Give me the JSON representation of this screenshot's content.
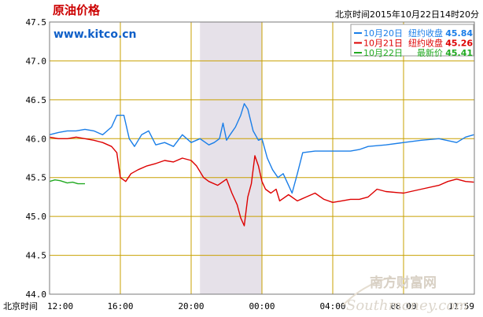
{
  "chart_data": {
    "type": "line",
    "title": "原油价格",
    "subtitle": "www.kitco.cn",
    "timestamp": "北京时间2015年10月22日14时20分",
    "x_axis_prefix": "北京时间",
    "x_ticks": [
      "12:00",
      "16:00",
      "20:00",
      "00:00",
      "04:00",
      "08:00",
      "11:59"
    ],
    "ylim": [
      44.0,
      47.5
    ],
    "y_ticks": [
      "47.5",
      "47.0",
      "46.5",
      "46.0",
      "45.5",
      "45.0",
      "44.5",
      "44.0"
    ],
    "grid": true,
    "legend_position": "top-right",
    "highlight_band": [
      20.5,
      24.0
    ],
    "series": [
      {
        "name": "10月20日",
        "legend_label": "纽约收盘",
        "legend_value": "45.84",
        "color": "#1a7ee8",
        "points": [
          [
            12.0,
            46.05
          ],
          [
            12.5,
            46.08
          ],
          [
            13.0,
            46.1
          ],
          [
            13.5,
            46.1
          ],
          [
            14.0,
            46.12
          ],
          [
            14.5,
            46.1
          ],
          [
            15.0,
            46.05
          ],
          [
            15.5,
            46.15
          ],
          [
            15.8,
            46.3
          ],
          [
            16.2,
            46.3
          ],
          [
            16.5,
            46.0
          ],
          [
            16.8,
            45.9
          ],
          [
            17.2,
            46.05
          ],
          [
            17.6,
            46.1
          ],
          [
            18.0,
            45.92
          ],
          [
            18.5,
            45.95
          ],
          [
            19.0,
            45.9
          ],
          [
            19.5,
            46.05
          ],
          [
            20.0,
            45.95
          ],
          [
            20.5,
            46.0
          ],
          [
            21.0,
            45.92
          ],
          [
            21.3,
            45.95
          ],
          [
            21.6,
            46.0
          ],
          [
            21.8,
            46.2
          ],
          [
            22.0,
            45.98
          ],
          [
            22.2,
            46.05
          ],
          [
            22.5,
            46.15
          ],
          [
            22.8,
            46.3
          ],
          [
            23.0,
            46.45
          ],
          [
            23.2,
            46.38
          ],
          [
            23.5,
            46.1
          ],
          [
            23.8,
            45.98
          ],
          [
            24.0,
            46.0
          ],
          [
            24.3,
            45.75
          ],
          [
            24.6,
            45.6
          ],
          [
            24.9,
            45.5
          ],
          [
            25.2,
            45.55
          ],
          [
            25.5,
            45.4
          ],
          [
            25.7,
            45.3
          ],
          [
            26.0,
            45.55
          ],
          [
            26.3,
            45.82
          ],
          [
            27.0,
            45.84
          ],
          [
            28.0,
            45.84
          ],
          [
            29.0,
            45.84
          ],
          [
            29.5,
            45.86
          ],
          [
            30.0,
            45.9
          ],
          [
            31.0,
            45.92
          ],
          [
            32.0,
            45.95
          ],
          [
            33.0,
            45.98
          ],
          [
            34.0,
            46.0
          ],
          [
            35.0,
            45.95
          ],
          [
            35.5,
            46.02
          ],
          [
            35.97,
            46.05
          ]
        ]
      },
      {
        "name": "10月21日",
        "legend_label": "纽约收盘",
        "legend_value": "45.26",
        "color": "#dd0000",
        "points": [
          [
            12.0,
            46.02
          ],
          [
            12.5,
            46.0
          ],
          [
            13.0,
            46.0
          ],
          [
            13.5,
            46.02
          ],
          [
            14.0,
            46.0
          ],
          [
            14.5,
            45.98
          ],
          [
            15.0,
            45.95
          ],
          [
            15.5,
            45.9
          ],
          [
            15.8,
            45.82
          ],
          [
            16.0,
            45.5
          ],
          [
            16.3,
            45.45
          ],
          [
            16.6,
            45.55
          ],
          [
            17.0,
            45.6
          ],
          [
            17.5,
            45.65
          ],
          [
            18.0,
            45.68
          ],
          [
            18.5,
            45.72
          ],
          [
            19.0,
            45.7
          ],
          [
            19.5,
            45.75
          ],
          [
            20.0,
            45.72
          ],
          [
            20.3,
            45.65
          ],
          [
            20.7,
            45.5
          ],
          [
            21.0,
            45.45
          ],
          [
            21.5,
            45.4
          ],
          [
            22.0,
            45.48
          ],
          [
            22.3,
            45.3
          ],
          [
            22.6,
            45.15
          ],
          [
            22.8,
            44.98
          ],
          [
            23.0,
            44.88
          ],
          [
            23.2,
            45.25
          ],
          [
            23.4,
            45.42
          ],
          [
            23.6,
            45.78
          ],
          [
            23.8,
            45.65
          ],
          [
            24.0,
            45.45
          ],
          [
            24.2,
            45.35
          ],
          [
            24.5,
            45.3
          ],
          [
            24.8,
            45.35
          ],
          [
            25.0,
            45.2
          ],
          [
            25.5,
            45.28
          ],
          [
            26.0,
            45.2
          ],
          [
            26.5,
            45.25
          ],
          [
            27.0,
            45.3
          ],
          [
            27.5,
            45.22
          ],
          [
            28.0,
            45.18
          ],
          [
            28.5,
            45.2
          ],
          [
            29.0,
            45.22
          ],
          [
            29.5,
            45.22
          ],
          [
            30.0,
            45.25
          ],
          [
            30.5,
            45.35
          ],
          [
            31.0,
            45.32
          ],
          [
            32.0,
            45.3
          ],
          [
            33.0,
            45.35
          ],
          [
            34.0,
            45.4
          ],
          [
            34.5,
            45.45
          ],
          [
            35.0,
            45.48
          ],
          [
            35.5,
            45.45
          ],
          [
            35.97,
            45.44
          ]
        ]
      },
      {
        "name": "10月22日",
        "legend_label": "最新价",
        "legend_value": "45.41",
        "color": "#22aa22",
        "points": [
          [
            12.0,
            45.45
          ],
          [
            12.3,
            45.47
          ],
          [
            12.6,
            45.46
          ],
          [
            13.0,
            45.43
          ],
          [
            13.3,
            45.44
          ],
          [
            13.6,
            45.42
          ],
          [
            14.0,
            45.42
          ]
        ]
      }
    ]
  },
  "watermark": {
    "brand": "南方财富网",
    "domain": "Southmoney.com"
  }
}
